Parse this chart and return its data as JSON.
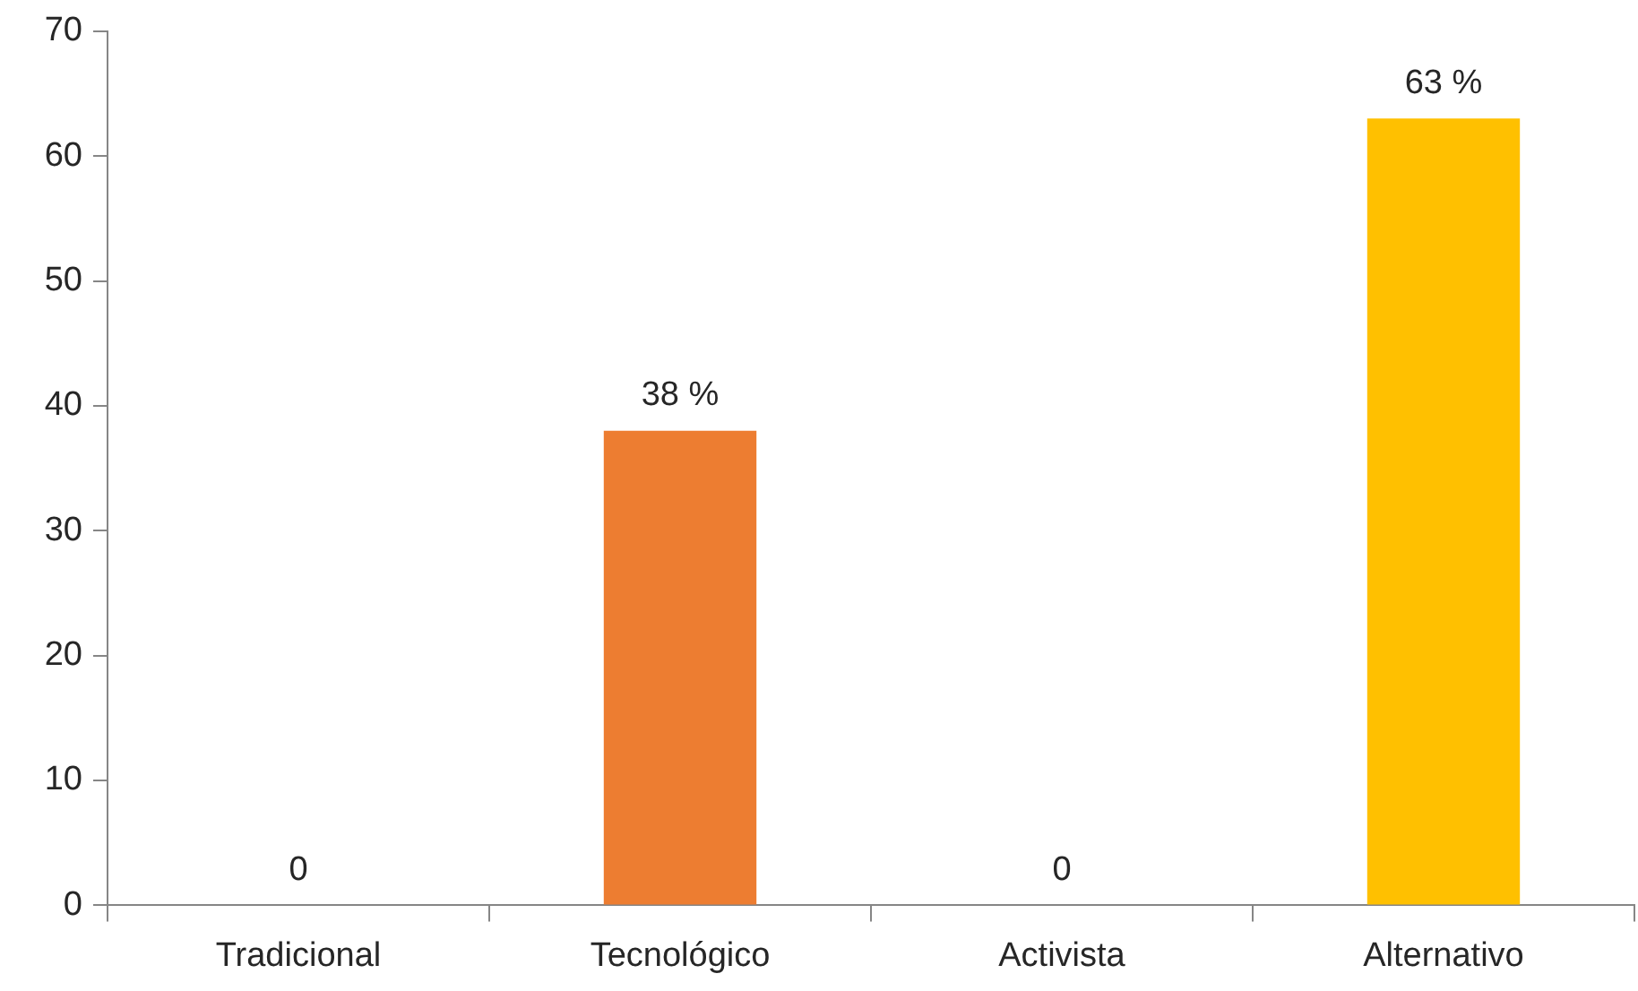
{
  "chart_data": {
    "type": "bar",
    "categories": [
      "Tradicional",
      "Tecnológico",
      "Activista",
      "Alternativo"
    ],
    "values": [
      0,
      38,
      0,
      63
    ],
    "colors": [
      "#4472c4",
      "#ed7d31",
      "#a5a5a5",
      "#ffc000"
    ],
    "value_labels": [
      "0",
      "38 %",
      "0",
      "63 %"
    ],
    "ylim": [
      0,
      70
    ],
    "yticks": [
      0,
      10,
      20,
      30,
      40,
      50,
      60,
      70
    ]
  }
}
